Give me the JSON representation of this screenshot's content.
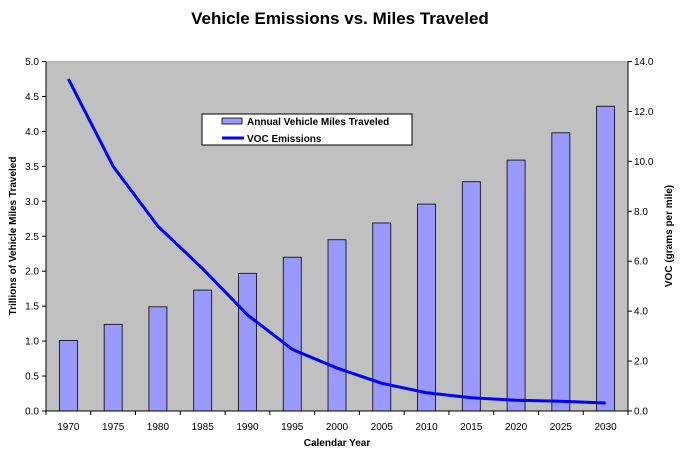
{
  "chart_data": {
    "type": "bar+line",
    "title": "Vehicle Emissions vs. Miles Traveled",
    "xlabel": "Calendar Year",
    "ylabel_left": "Trillions of Vehicle Miles Traveled",
    "ylabel_right": "VOC (grams per mile)",
    "categories": [
      "1970",
      "1975",
      "1980",
      "1985",
      "1990",
      "1995",
      "2000",
      "2005",
      "2010",
      "2015",
      "2020",
      "2025",
      "2030"
    ],
    "ylim_left": [
      0,
      5.0
    ],
    "yticks_left": [
      "0.0",
      "0.5",
      "1.0",
      "1.5",
      "2.0",
      "2.5",
      "3.0",
      "3.5",
      "4.0",
      "4.5",
      "5.0"
    ],
    "ylim_right": [
      0,
      14.0
    ],
    "yticks_right": [
      "0.0",
      "2.0",
      "4.0",
      "6.0",
      "8.0",
      "10.0",
      "12.0",
      "14.0"
    ],
    "grid": false,
    "legend_placement": "top-center",
    "series": [
      {
        "name": "Annual Vehicle Miles Traveled",
        "type": "bar",
        "axis": "left",
        "color": "#9999ff",
        "values": [
          1.01,
          1.24,
          1.49,
          1.73,
          1.97,
          2.2,
          2.45,
          2.69,
          2.96,
          3.28,
          3.59,
          3.98,
          4.36
        ]
      },
      {
        "name": "VOC Emissions",
        "type": "line",
        "axis": "right",
        "color": "#0000ff",
        "values": [
          13.3,
          9.8,
          7.4,
          5.7,
          3.85,
          2.47,
          1.72,
          1.11,
          0.73,
          0.53,
          0.43,
          0.39,
          0.32
        ]
      }
    ],
    "plot_background": "#c0c0c0"
  }
}
